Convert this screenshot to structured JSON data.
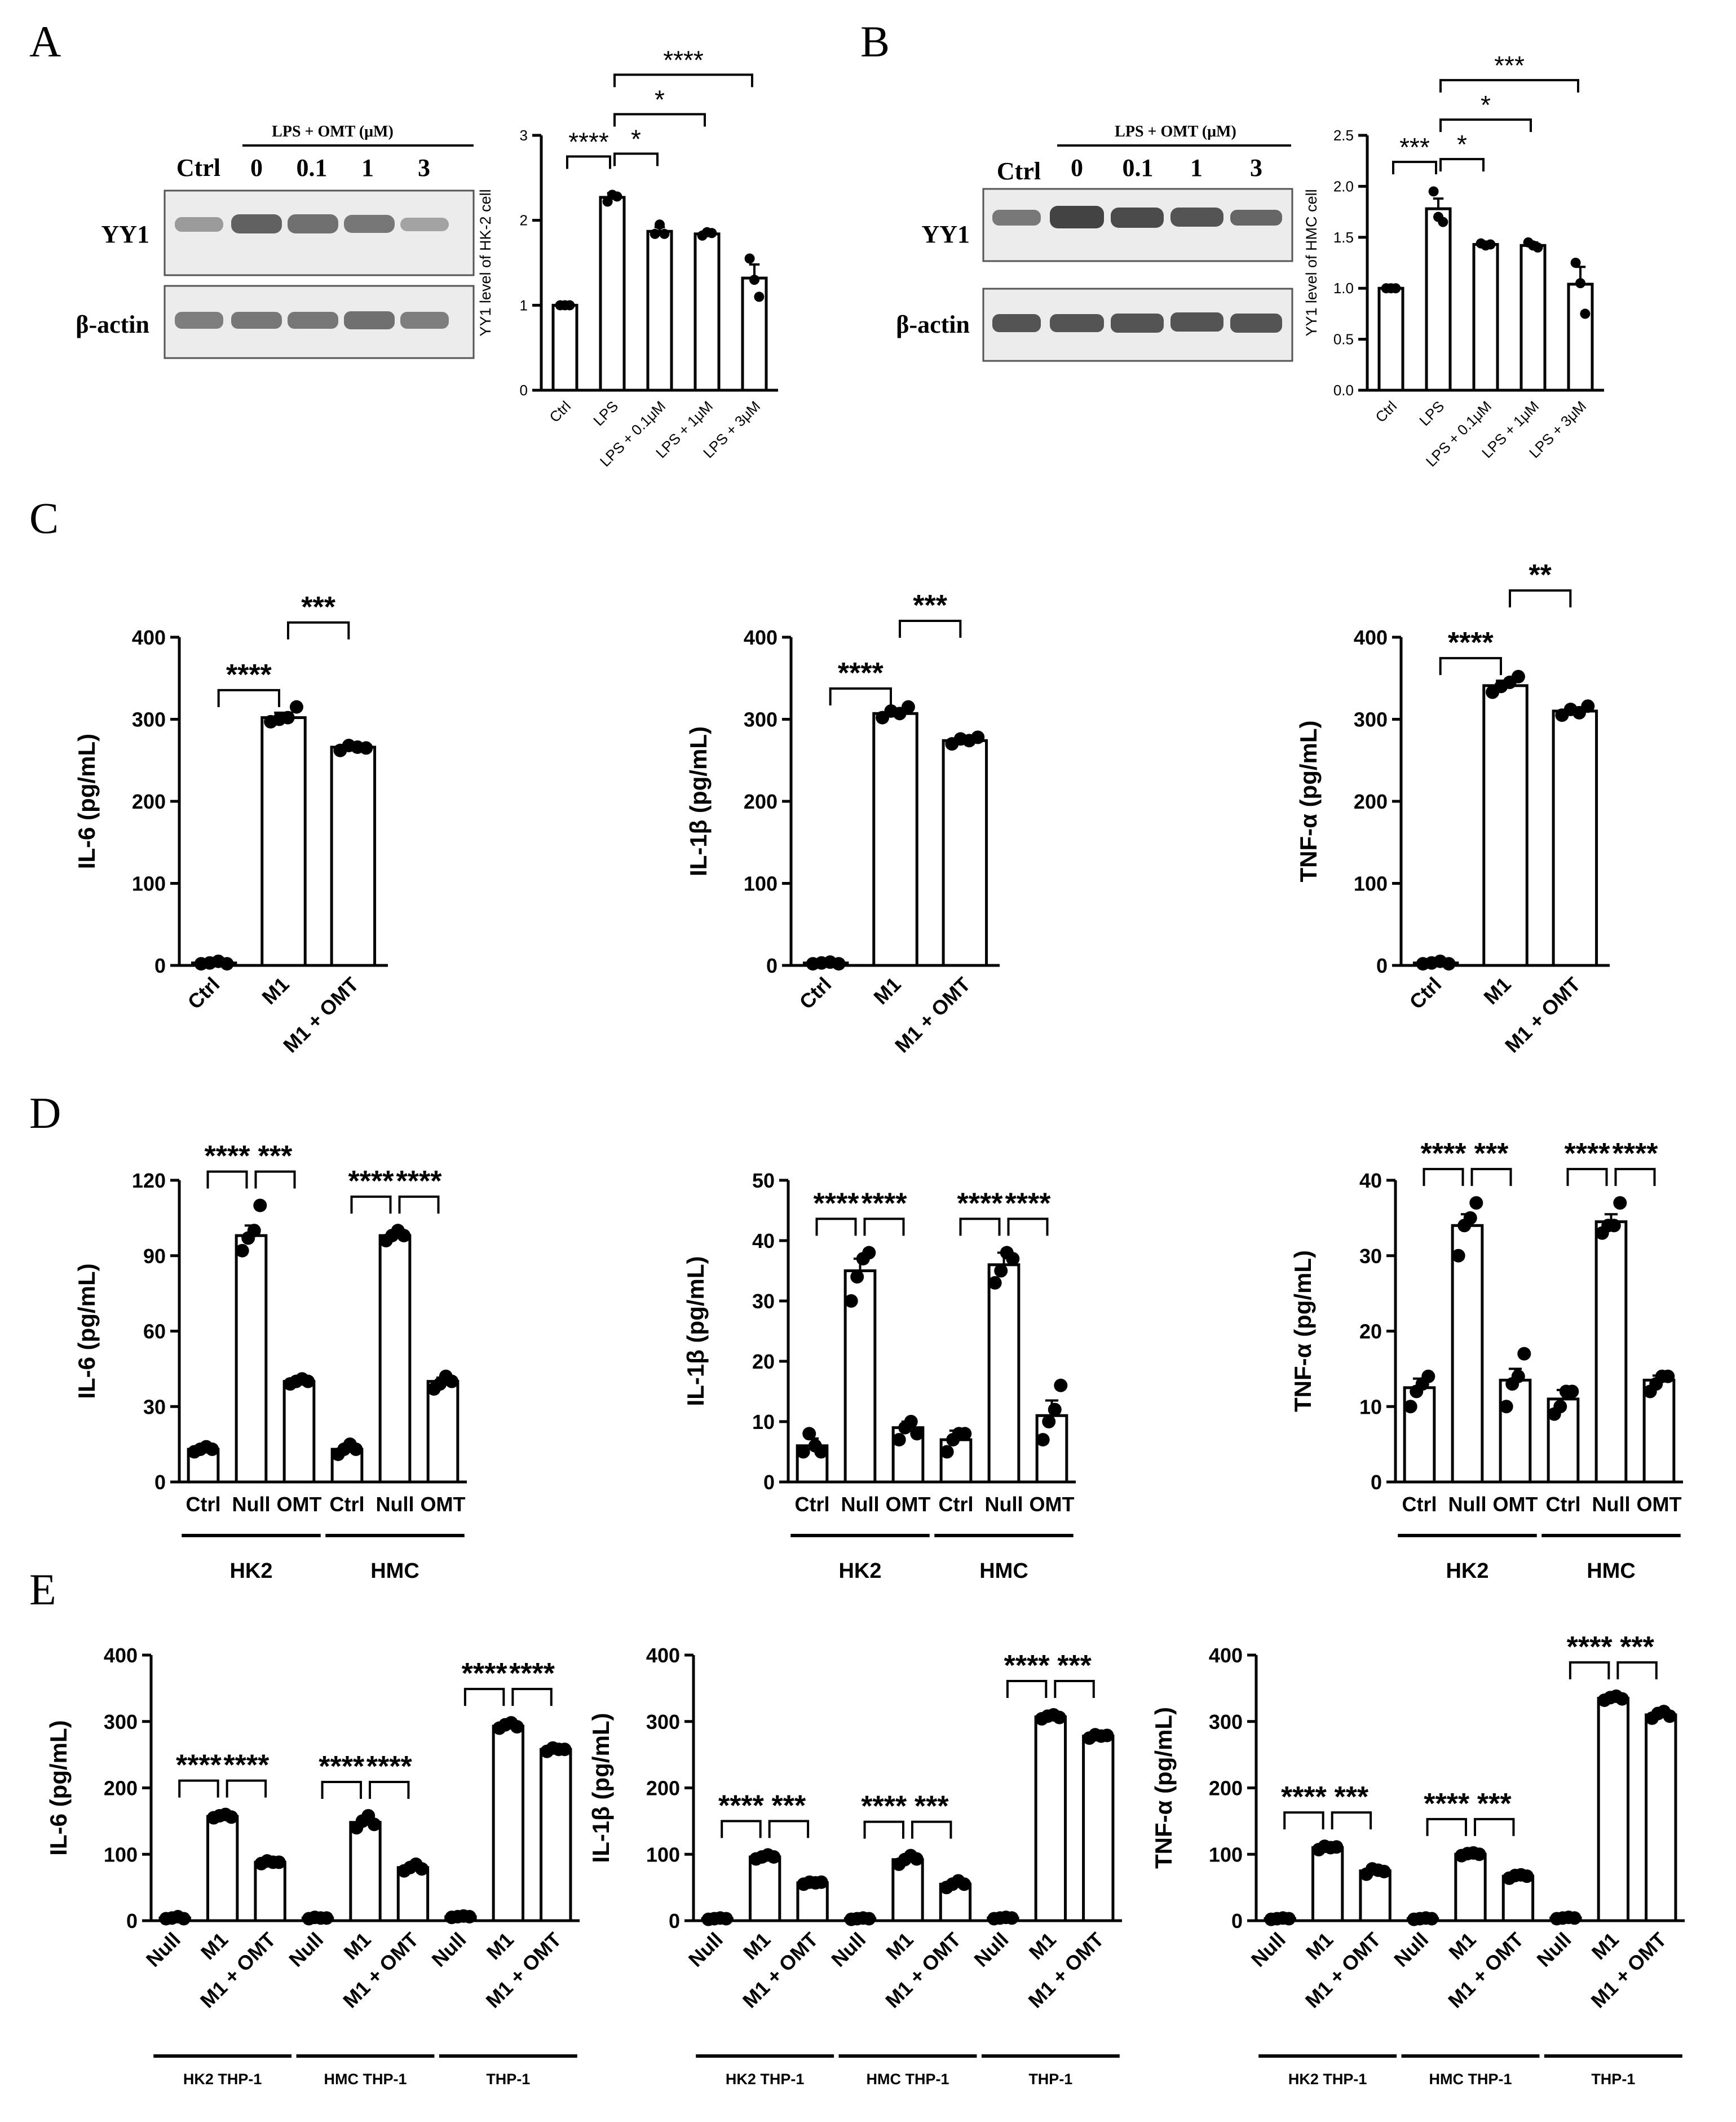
{
  "panels": {
    "A": {
      "label": "A",
      "blot": {
        "header": "LPS + OMT (μM)",
        "lanes": [
          "Ctrl",
          "0",
          "0.1",
          "1",
          "3"
        ],
        "rows": [
          "YY1",
          "β-actin"
        ]
      }
    },
    "B": {
      "label": "B",
      "blot": {
        "header": "LPS + OMT (μM)",
        "lanes": [
          "Ctrl",
          "0",
          "0.1",
          "1",
          "3"
        ],
        "rows": [
          "YY1",
          "β-actin"
        ]
      }
    },
    "C": {
      "label": "C"
    },
    "D": {
      "label": "D"
    },
    "E": {
      "label": "E"
    }
  },
  "chart_data": [
    {
      "id": "A",
      "type": "bar",
      "ylabel": "YY1 level of HK-2 cell",
      "ylim": [
        0,
        3
      ],
      "yticks": [
        0,
        1,
        2,
        3
      ],
      "categories": [
        "Ctrl",
        "LPS",
        "LPS + 0.1μM",
        "LPS + 1μM",
        "LPS + 3μM"
      ],
      "values": [
        1.0,
        2.27,
        1.87,
        1.84,
        1.32
      ],
      "sem": [
        0.01,
        0.05,
        0.05,
        0.03,
        0.16
      ],
      "points": [
        [
          1.0,
          1.0,
          1.0
        ],
        [
          2.22,
          2.3,
          2.28
        ],
        [
          1.84,
          1.95,
          1.84
        ],
        [
          1.82,
          1.86,
          1.85
        ],
        [
          1.55,
          1.3,
          1.1
        ]
      ],
      "sig": [
        {
          "a": 0,
          "b": 1,
          "text": "****"
        },
        {
          "a": 1,
          "b": 2,
          "text": "*"
        },
        {
          "a": 1,
          "b": 3,
          "text": "*"
        },
        {
          "a": 1,
          "b": 4,
          "text": "****"
        }
      ]
    },
    {
      "id": "B",
      "type": "bar",
      "ylabel": "YY1 level of HMC cell",
      "ylim": [
        0,
        2.5
      ],
      "yticks": [
        "0.0",
        "0.5",
        "1.0",
        "1.5",
        "2.0",
        "2.5"
      ],
      "categories": [
        "Ctrl",
        "LPS",
        "LPS + 0.1μM",
        "LPS + 1μM",
        "LPS + 3μM"
      ],
      "values": [
        1.0,
        1.78,
        1.43,
        1.42,
        1.04
      ],
      "sem": [
        0.01,
        0.1,
        0.02,
        0.03,
        0.17
      ],
      "points": [
        [
          1.0,
          1.0,
          1.0
        ],
        [
          1.95,
          1.7,
          1.65
        ],
        [
          1.44,
          1.42,
          1.43
        ],
        [
          1.45,
          1.42,
          1.4
        ],
        [
          1.25,
          1.05,
          0.75
        ]
      ],
      "sig": [
        {
          "a": 0,
          "b": 1,
          "text": "***"
        },
        {
          "a": 1,
          "b": 2,
          "text": "*"
        },
        {
          "a": 1,
          "b": 3,
          "text": "*"
        },
        {
          "a": 1,
          "b": 4,
          "text": "***"
        }
      ]
    },
    {
      "id": "C1",
      "type": "bar",
      "ylabel": "IL-6 (pg/mL)",
      "ylim": [
        0,
        400
      ],
      "yticks": [
        0,
        100,
        200,
        300,
        400
      ],
      "categories": [
        "Ctrl",
        "M1",
        "M1 + OMT"
      ],
      "values": [
        3,
        302,
        266
      ],
      "sem": [
        1,
        6,
        3
      ],
      "points": [
        [
          2,
          3,
          5,
          2
        ],
        [
          297,
          300,
          302,
          315
        ],
        [
          262,
          268,
          266,
          265
        ]
      ],
      "sig": [
        {
          "a": 0,
          "b": 1,
          "text": "****"
        },
        {
          "a": 1,
          "b": 2,
          "text": "***"
        }
      ]
    },
    {
      "id": "C2",
      "type": "bar",
      "ylabel": "IL-1β (pg/mL)",
      "ylim": [
        0,
        400
      ],
      "yticks": [
        0,
        100,
        200,
        300,
        400
      ],
      "categories": [
        "Ctrl",
        "M1",
        "M1 + OMT"
      ],
      "values": [
        3,
        307,
        274
      ],
      "sem": [
        1,
        3,
        3
      ],
      "points": [
        [
          2,
          3,
          4,
          2
        ],
        [
          302,
          310,
          307,
          315
        ],
        [
          270,
          276,
          274,
          278
        ]
      ],
      "sig": [
        {
          "a": 0,
          "b": 1,
          "text": "****"
        },
        {
          "a": 1,
          "b": 2,
          "text": "***"
        }
      ]
    },
    {
      "id": "C3",
      "type": "bar",
      "ylabel": "TNF-α (pg/mL)",
      "ylim": [
        0,
        400
      ],
      "yticks": [
        0,
        100,
        200,
        300,
        400
      ],
      "categories": [
        "Ctrl",
        "M1",
        "M1 + OMT"
      ],
      "values": [
        3,
        341,
        310
      ],
      "sem": [
        1,
        6,
        3
      ],
      "points": [
        [
          2,
          3,
          5,
          2
        ],
        [
          333,
          340,
          345,
          352
        ],
        [
          305,
          312,
          308,
          316
        ]
      ],
      "sig": [
        {
          "a": 0,
          "b": 1,
          "text": "****"
        },
        {
          "a": 1,
          "b": 2,
          "text": "**"
        }
      ]
    },
    {
      "id": "D1",
      "type": "bar",
      "ylabel": "IL-6 (pg/mL)",
      "ylim": [
        0,
        120
      ],
      "yticks": [
        0,
        30,
        60,
        90,
        120
      ],
      "categories": [
        "Ctrl",
        "Null",
        "OMT",
        "Ctrl",
        "Null",
        "OMT"
      ],
      "groups": [
        {
          "name": "HK2",
          "from": 0,
          "to": 2
        },
        {
          "name": "HMC",
          "from": 3,
          "to": 5
        }
      ],
      "values": [
        13,
        98,
        40,
        13,
        98,
        40
      ],
      "sem": [
        1,
        4,
        1,
        1,
        1.5,
        1.5
      ],
      "points": [
        [
          12,
          13,
          14,
          13
        ],
        [
          92,
          97,
          100,
          110
        ],
        [
          39,
          40,
          41,
          40
        ],
        [
          11,
          13,
          15,
          13
        ],
        [
          96,
          98,
          100,
          98
        ],
        [
          37,
          39,
          42,
          40
        ]
      ],
      "sig": [
        {
          "a": 0,
          "b": 1,
          "text": "****"
        },
        {
          "a": 1,
          "b": 2,
          "text": "***"
        },
        {
          "a": 3,
          "b": 4,
          "text": "****"
        },
        {
          "a": 4,
          "b": 5,
          "text": "****"
        }
      ]
    },
    {
      "id": "D2",
      "type": "bar",
      "ylabel": "IL-1β (pg/mL)",
      "ylim": [
        0,
        50
      ],
      "yticks": [
        0,
        10,
        20,
        30,
        40,
        50
      ],
      "categories": [
        "Ctrl",
        "Null",
        "OMT",
        "Ctrl",
        "Null",
        "OMT"
      ],
      "groups": [
        {
          "name": "HK2",
          "from": 0,
          "to": 2
        },
        {
          "name": "HMC",
          "from": 3,
          "to": 5
        }
      ],
      "values": [
        6,
        35,
        9,
        7,
        36,
        11
      ],
      "sem": [
        1.2,
        2,
        1,
        1.5,
        2,
        2.5
      ],
      "points": [
        [
          5,
          8,
          6,
          5
        ],
        [
          30,
          34,
          37,
          38
        ],
        [
          7,
          9,
          10,
          8
        ],
        [
          5,
          7,
          8,
          8
        ],
        [
          33,
          35,
          38,
          37
        ],
        [
          7,
          10,
          12,
          16
        ]
      ],
      "sig": [
        {
          "a": 0,
          "b": 1,
          "text": "****"
        },
        {
          "a": 1,
          "b": 2,
          "text": "****"
        },
        {
          "a": 3,
          "b": 4,
          "text": "****"
        },
        {
          "a": 4,
          "b": 5,
          "text": "****"
        }
      ]
    },
    {
      "id": "D3",
      "type": "bar",
      "ylabel": "TNF-α (pg/mL)",
      "ylim": [
        0,
        40
      ],
      "yticks": [
        0,
        10,
        20,
        30,
        40
      ],
      "categories": [
        "Ctrl",
        "Null",
        "OMT",
        "Ctrl",
        "Null",
        "OMT"
      ],
      "groups": [
        {
          "name": "HK2",
          "from": 0,
          "to": 2
        },
        {
          "name": "HMC",
          "from": 3,
          "to": 5
        }
      ],
      "values": [
        12.5,
        34,
        13.5,
        11,
        34.5,
        13.5
      ],
      "sem": [
        1.2,
        1.5,
        1.5,
        1.2,
        1,
        0.6
      ],
      "points": [
        [
          10,
          12,
          13,
          14
        ],
        [
          30,
          34,
          35,
          37
        ],
        [
          10,
          13,
          14,
          17
        ],
        [
          9,
          10,
          12,
          12
        ],
        [
          33,
          34,
          34,
          37
        ],
        [
          12,
          13,
          14,
          14
        ]
      ],
      "sig": [
        {
          "a": 0,
          "b": 1,
          "text": "****"
        },
        {
          "a": 1,
          "b": 2,
          "text": "***"
        },
        {
          "a": 3,
          "b": 4,
          "text": "****"
        },
        {
          "a": 4,
          "b": 5,
          "text": "****"
        }
      ]
    },
    {
      "id": "E1",
      "type": "bar",
      "ylabel": "IL-6 (pg/mL)",
      "ylim": [
        0,
        400
      ],
      "yticks": [
        0,
        100,
        200,
        300,
        400
      ],
      "categories": [
        "Null",
        "M1",
        "M1 + OMT",
        "Null",
        "M1",
        "M1 + OMT",
        "Null",
        "M1",
        "M1 + OMT"
      ],
      "groups": [
        {
          "name": "HK2 THP-1",
          "from": 0,
          "to": 2
        },
        {
          "name": "HMC THP-1",
          "from": 3,
          "to": 5
        },
        {
          "name": "THP-1",
          "from": 6,
          "to": 8
        }
      ],
      "values": [
        4,
        157,
        88,
        4,
        148,
        80,
        6,
        293,
        258
      ],
      "sem": [
        1,
        2,
        2,
        1,
        6,
        4,
        1,
        2,
        2
      ],
      "points": [
        [
          3,
          4,
          6,
          3
        ],
        [
          155,
          158,
          160,
          156
        ],
        [
          86,
          90,
          88,
          88
        ],
        [
          3,
          5,
          4,
          4
        ],
        [
          140,
          150,
          158,
          145
        ],
        [
          75,
          80,
          85,
          78
        ],
        [
          5,
          6,
          7,
          6
        ],
        [
          290,
          295,
          298,
          292
        ],
        [
          255,
          260,
          258,
          258
        ]
      ],
      "sig": [
        {
          "a": 0,
          "b": 1,
          "text": "****"
        },
        {
          "a": 1,
          "b": 2,
          "text": "****"
        },
        {
          "a": 3,
          "b": 4,
          "text": "****"
        },
        {
          "a": 4,
          "b": 5,
          "text": "****"
        },
        {
          "a": 6,
          "b": 7,
          "text": "****"
        },
        {
          "a": 7,
          "b": 8,
          "text": "****"
        }
      ]
    },
    {
      "id": "E2",
      "type": "bar",
      "ylabel": "IL-1β (pg/mL)",
      "ylim": [
        0,
        400
      ],
      "yticks": [
        0,
        100,
        200,
        300,
        400
      ],
      "categories": [
        "Null",
        "M1",
        "M1 + OMT",
        "Null",
        "M1",
        "M1 + OMT",
        "Null",
        "M1",
        "M1 + OMT"
      ],
      "groups": [
        {
          "name": "HK2 THP-1",
          "from": 0,
          "to": 2
        },
        {
          "name": "HMC THP-1",
          "from": 3,
          "to": 5
        },
        {
          "name": "THP-1",
          "from": 6,
          "to": 8
        }
      ],
      "values": [
        3,
        96,
        57,
        3,
        92,
        55,
        4,
        307,
        278
      ],
      "sem": [
        1,
        2,
        2,
        1,
        5,
        4,
        1,
        2,
        2
      ],
      "points": [
        [
          2,
          3,
          4,
          3
        ],
        [
          93,
          96,
          99,
          96
        ],
        [
          55,
          58,
          57,
          58
        ],
        [
          2,
          3,
          4,
          3
        ],
        [
          85,
          92,
          98,
          93
        ],
        [
          50,
          55,
          60,
          55
        ],
        [
          3,
          4,
          5,
          4
        ],
        [
          304,
          308,
          310,
          306
        ],
        [
          275,
          280,
          278,
          279
        ]
      ],
      "sig": [
        {
          "a": 0,
          "b": 1,
          "text": "****"
        },
        {
          "a": 1,
          "b": 2,
          "text": "***"
        },
        {
          "a": 3,
          "b": 4,
          "text": "****"
        },
        {
          "a": 4,
          "b": 5,
          "text": "***"
        },
        {
          "a": 6,
          "b": 7,
          "text": "****"
        },
        {
          "a": 7,
          "b": 8,
          "text": "***"
        }
      ]
    },
    {
      "id": "E3",
      "type": "bar",
      "ylabel": "TNF-α (pg/mL)",
      "ylim": [
        0,
        400
      ],
      "yticks": [
        0,
        100,
        200,
        300,
        400
      ],
      "categories": [
        "Null",
        "M1",
        "M1 + OMT",
        "Null",
        "M1",
        "M1 + OMT",
        "Null",
        "M1",
        "M1 + OMT"
      ],
      "groups": [
        {
          "name": "HK2 THP-1",
          "from": 0,
          "to": 2
        },
        {
          "name": "HMC THP-1",
          "from": 3,
          "to": 5
        },
        {
          "name": "THP-1",
          "from": 6,
          "to": 8
        }
      ],
      "values": [
        3,
        110,
        75,
        3,
        100,
        67,
        4,
        335,
        310
      ],
      "sem": [
        1,
        2,
        3,
        1,
        1,
        2,
        1,
        2,
        3
      ],
      "points": [
        [
          2,
          3,
          4,
          3
        ],
        [
          107,
          112,
          110,
          111
        ],
        [
          70,
          78,
          76,
          74
        ],
        [
          2,
          3,
          4,
          3
        ],
        [
          98,
          101,
          102,
          100
        ],
        [
          64,
          68,
          69,
          67
        ],
        [
          3,
          4,
          5,
          4
        ],
        [
          332,
          336,
          338,
          334
        ],
        [
          305,
          312,
          315,
          308
        ]
      ],
      "sig": [
        {
          "a": 0,
          "b": 1,
          "text": "****"
        },
        {
          "a": 1,
          "b": 2,
          "text": "***"
        },
        {
          "a": 3,
          "b": 4,
          "text": "****"
        },
        {
          "a": 4,
          "b": 5,
          "text": "***"
        },
        {
          "a": 6,
          "b": 7,
          "text": "****"
        },
        {
          "a": 7,
          "b": 8,
          "text": "***"
        }
      ]
    }
  ]
}
